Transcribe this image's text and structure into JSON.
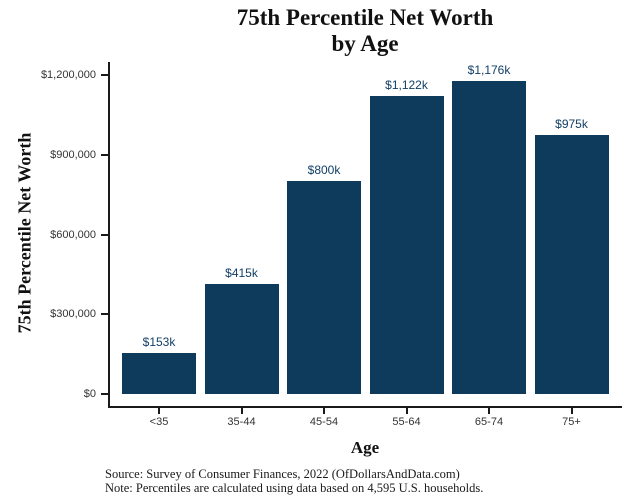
{
  "title": {
    "line1": "75th Percentile Net Worth",
    "line2": "by Age"
  },
  "chart_data": {
    "type": "bar",
    "title": "75th Percentile Net Worth by Age",
    "categories": [
      "<35",
      "35-44",
      "45-54",
      "55-64",
      "65-74",
      "75+"
    ],
    "values": [
      153000,
      415000,
      800000,
      1122000,
      1176000,
      975000
    ],
    "bar_labels": [
      "$153k",
      "$415k",
      "$800k",
      "$1,122k",
      "$1,176k",
      "$975k"
    ],
    "xlabel": "Age",
    "ylabel": "75th Percentile Net Worth",
    "ylim": [
      0,
      1200000
    ],
    "yticks": [
      {
        "value": 0,
        "label": "$0"
      },
      {
        "value": 300000,
        "label": "$300,000"
      },
      {
        "value": 600000,
        "label": "$600,000"
      },
      {
        "value": 900000,
        "label": "$900,000"
      },
      {
        "value": 1200000,
        "label": "$1,200,000"
      }
    ],
    "grid": false,
    "legend": false,
    "bar_color": "#0e3a5c",
    "bar_label_color": "#123f66",
    "axis_color": "#1a1a1a",
    "tick_text_color": "#333333"
  },
  "footer": {
    "source": "Source:  Survey of Consumer Finances, 2022 (OfDollarsAndData.com)",
    "note": "Note: Percentiles are calculated using data based on 4,595 U.S. households."
  }
}
